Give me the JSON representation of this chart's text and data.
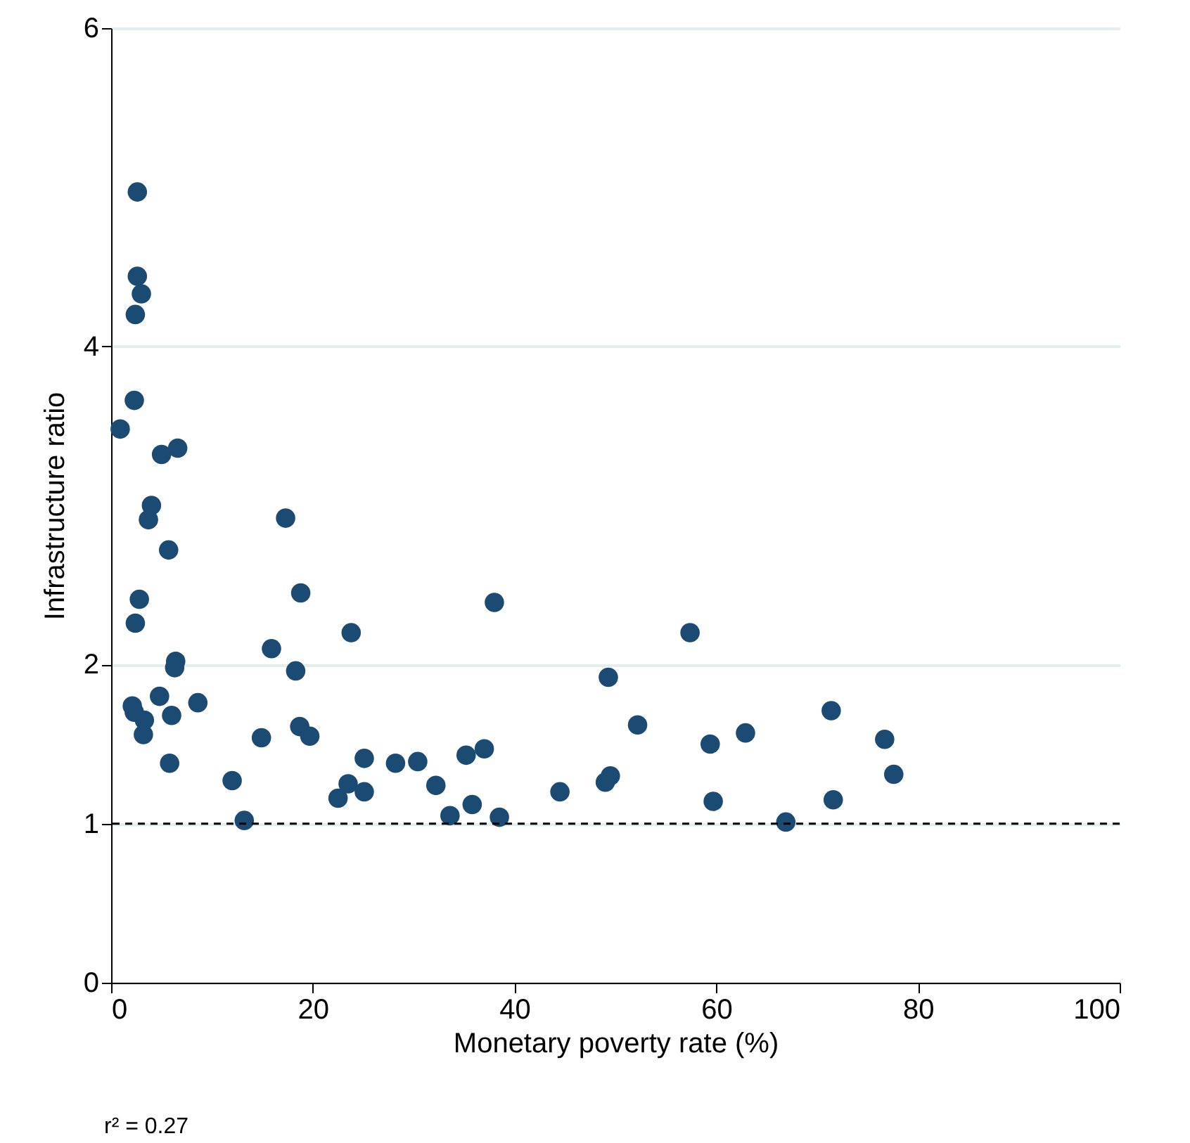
{
  "chart_data": {
    "type": "scatter",
    "xlabel": "Monetary poverty rate (%)",
    "ylabel": "Infrastructure ratio",
    "x": [
      2.6,
      2.6,
      3.0,
      2.4,
      2.3,
      0.9,
      5.0,
      6.6,
      4.0,
      3.7,
      5.7,
      17.3,
      18.8,
      2.8,
      2.4,
      23.8,
      38.0,
      57.4,
      15.9,
      6.4,
      6.3,
      18.3,
      49.3,
      2.1,
      2.3,
      4.8,
      8.6,
      3.3,
      3.2,
      6.0,
      5.8,
      14.9,
      18.7,
      19.7,
      52.2,
      59.4,
      62.9,
      71.4,
      76.7,
      77.6,
      12.0,
      13.2,
      25.1,
      28.2,
      30.4,
      32.2,
      33.6,
      35.2,
      37.0,
      35.8,
      38.5,
      44.5,
      49.0,
      49.5,
      59.7,
      66.9,
      71.6,
      22.5,
      23.5,
      25.1
    ],
    "series": [
      {
        "color": "#1b4a73",
        "values": [
          4.97,
          4.44,
          4.33,
          4.2,
          3.66,
          3.48,
          3.32,
          3.36,
          3.0,
          2.91,
          2.72,
          2.92,
          2.45,
          2.41,
          2.26,
          2.2,
          2.39,
          2.2,
          2.1,
          2.02,
          1.98,
          1.96,
          1.92,
          1.74,
          1.7,
          1.8,
          1.76,
          1.65,
          1.56,
          1.68,
          1.38,
          1.54,
          1.61,
          1.55,
          1.62,
          1.5,
          1.57,
          1.71,
          1.53,
          1.31,
          1.27,
          1.02,
          1.41,
          1.38,
          1.39,
          1.24,
          1.05,
          1.43,
          1.47,
          1.12,
          1.04,
          1.2,
          1.26,
          1.3,
          1.14,
          1.01,
          1.15,
          1.16,
          1.25,
          1.2
        ]
      }
    ],
    "xlim": [
      0,
      100
    ],
    "xticks": [
      0,
      20,
      40,
      60,
      80,
      100
    ],
    "ylim": [
      0,
      6
    ],
    "yticks": [
      0,
      1,
      2,
      4,
      6
    ],
    "grid": "y",
    "marker": "circle",
    "ref_lines": [
      {
        "axis": "y",
        "value": 1,
        "color": "#000000",
        "line_style": "dashed"
      }
    ],
    "annotations": [
      "r² = 0.27"
    ]
  }
}
